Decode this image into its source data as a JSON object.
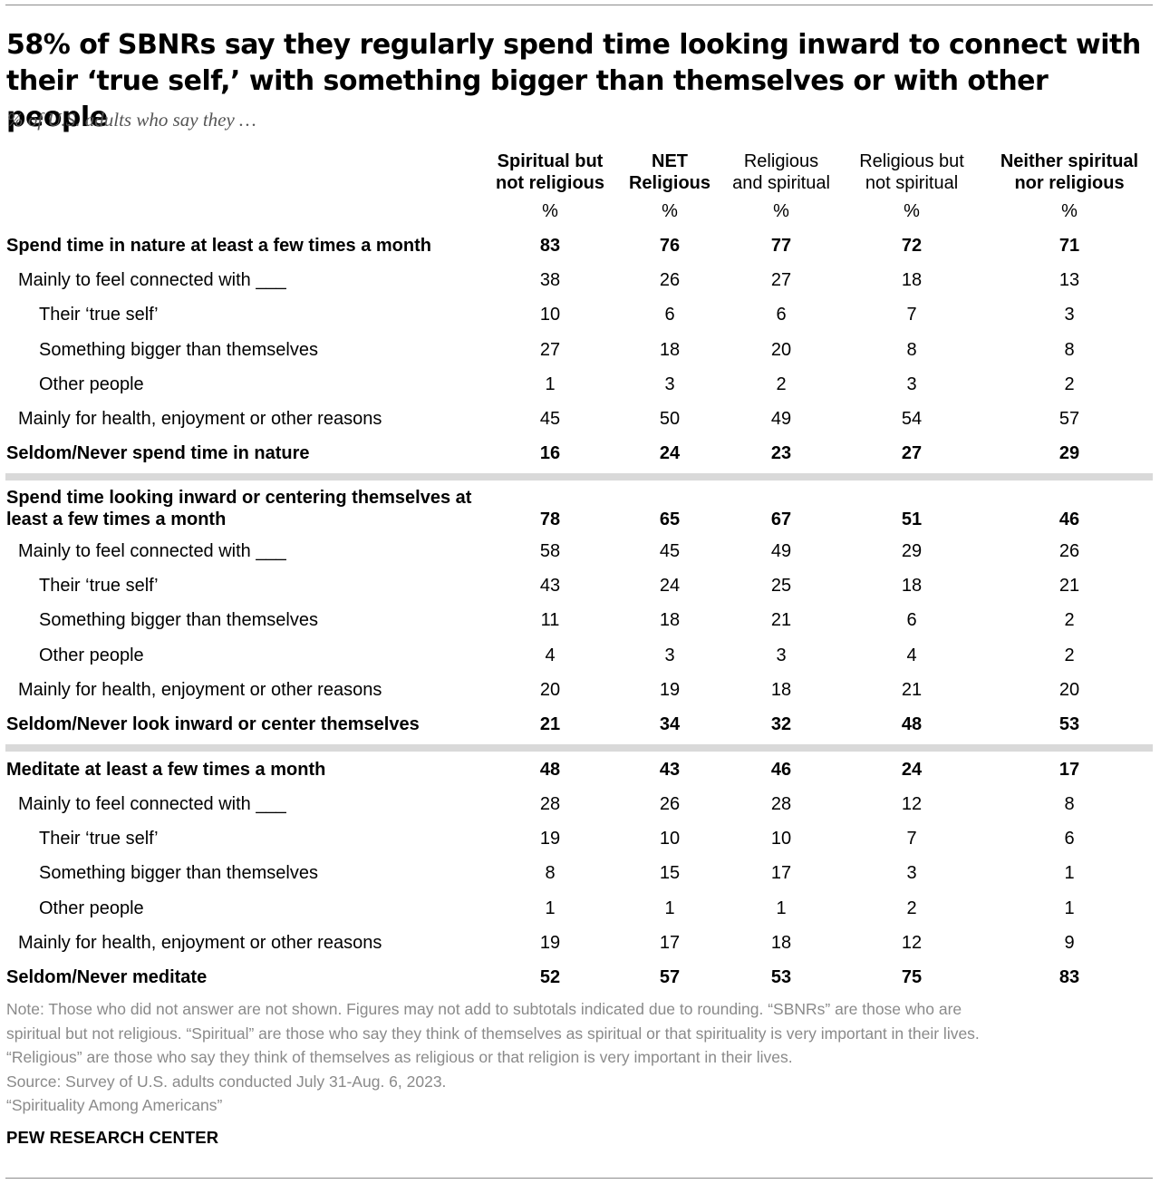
{
  "title": "58% of SBNRs say they regularly spend time looking inward to connect with their ‘true self,’ with something bigger than themselves or with other people",
  "subtitle": "% of U.S. adults who say they …",
  "columns": [
    {
      "line1": "Spiritual but",
      "line2": "not religious",
      "unit": "%"
    },
    {
      "line1": "NET",
      "line2": "Religious",
      "unit": "%"
    },
    {
      "line1": "Religious",
      "line2": "and spiritual",
      "unit": "%"
    },
    {
      "line1": "Religious but",
      "line2": "not spiritual",
      "unit": "%"
    },
    {
      "line1": "Neither spiritual",
      "line2": "nor religious",
      "unit": "%"
    }
  ],
  "chart_data": {
    "type": "table",
    "title": "58% of SBNRs say they regularly spend time looking inward to connect with their ‘true self,’ with something bigger than themselves or with other people",
    "columns": [
      "Spiritual but not religious",
      "NET Religious",
      "Religious and spiritual",
      "Religious but not spiritual",
      "Neither spiritual nor religious"
    ],
    "sections": [
      {
        "rows": [
          {
            "label": "Spend time in nature at least a few times a month",
            "values": [
              "83",
              "76",
              "77",
              "72",
              "71"
            ]
          },
          {
            "label": "Mainly to feel connected with ___",
            "values": [
              "38",
              "26",
              "27",
              "18",
              "13"
            ]
          },
          {
            "label": "Their ‘true self’",
            "values": [
              "10",
              "6",
              "6",
              "7",
              "3"
            ]
          },
          {
            "label": "Something bigger than themselves",
            "values": [
              "27",
              "18",
              "20",
              "8",
              "8"
            ]
          },
          {
            "label": "Other people",
            "values": [
              "1",
              "3",
              "2",
              "3",
              "2"
            ]
          },
          {
            "label": "Mainly for health, enjoyment or other reasons",
            "values": [
              "45",
              "50",
              "49",
              "54",
              "57"
            ]
          },
          {
            "label": "Seldom/Never spend time in nature",
            "values": [
              "16",
              "24",
              "23",
              "27",
              "29"
            ]
          }
        ]
      },
      {
        "rows": [
          {
            "label": "Spend time looking inward or centering themselves at least a few times a month",
            "values": [
              "78",
              "65",
              "67",
              "51",
              "46"
            ]
          },
          {
            "label": "Mainly to feel connected with ___",
            "values": [
              "58",
              "45",
              "49",
              "29",
              "26"
            ]
          },
          {
            "label": "Their ‘true self’",
            "values": [
              "43",
              "24",
              "25",
              "18",
              "21"
            ]
          },
          {
            "label": "Something bigger than themselves",
            "values": [
              "11",
              "18",
              "21",
              "6",
              "2"
            ]
          },
          {
            "label": "Other people",
            "values": [
              "4",
              "3",
              "3",
              "4",
              "2"
            ]
          },
          {
            "label": "Mainly for health, enjoyment or other reasons",
            "values": [
              "20",
              "19",
              "18",
              "21",
              "20"
            ]
          },
          {
            "label": "Seldom/Never look inward or center themselves",
            "values": [
              "21",
              "34",
              "32",
              "48",
              "53"
            ]
          }
        ]
      },
      {
        "rows": [
          {
            "label": "Meditate at least a few times a month",
            "values": [
              "48",
              "43",
              "46",
              "24",
              "17"
            ]
          },
          {
            "label": "Mainly to feel connected with ___",
            "values": [
              "28",
              "26",
              "28",
              "12",
              "8"
            ]
          },
          {
            "label": "Their ‘true self’",
            "values": [
              "19",
              "10",
              "10",
              "7",
              "6"
            ]
          },
          {
            "label": "Something bigger than themselves",
            "values": [
              "8",
              "15",
              "17",
              "3",
              "1"
            ]
          },
          {
            "label": "Other people",
            "values": [
              "1",
              "1",
              "1",
              "2",
              "1"
            ]
          },
          {
            "label": "Mainly for health, enjoyment or other reasons",
            "values": [
              "19",
              "17",
              "18",
              "12",
              "9"
            ]
          },
          {
            "label": "Seldom/Never meditate",
            "values": [
              "52",
              "57",
              "53",
              "75",
              "83"
            ]
          }
        ]
      }
    ]
  },
  "notes": {
    "line1": "Note: Those who did not answer are not shown. Figures may not add to subtotals indicated due to rounding. “SBNRs” are those who are",
    "line2": "spiritual but not religious. “Spiritual” are those who say they think of themselves as spiritual or that spirituality is very important in their lives.",
    "line3": "“Religious” are those who say they think of themselves as religious or that religion is very important in their lives.",
    "source": "Source: Survey of U.S. adults conducted July 31-Aug. 6, 2023.",
    "report": "“Spirituality Among Americans”"
  },
  "brand": "PEW RESEARCH CENTER"
}
